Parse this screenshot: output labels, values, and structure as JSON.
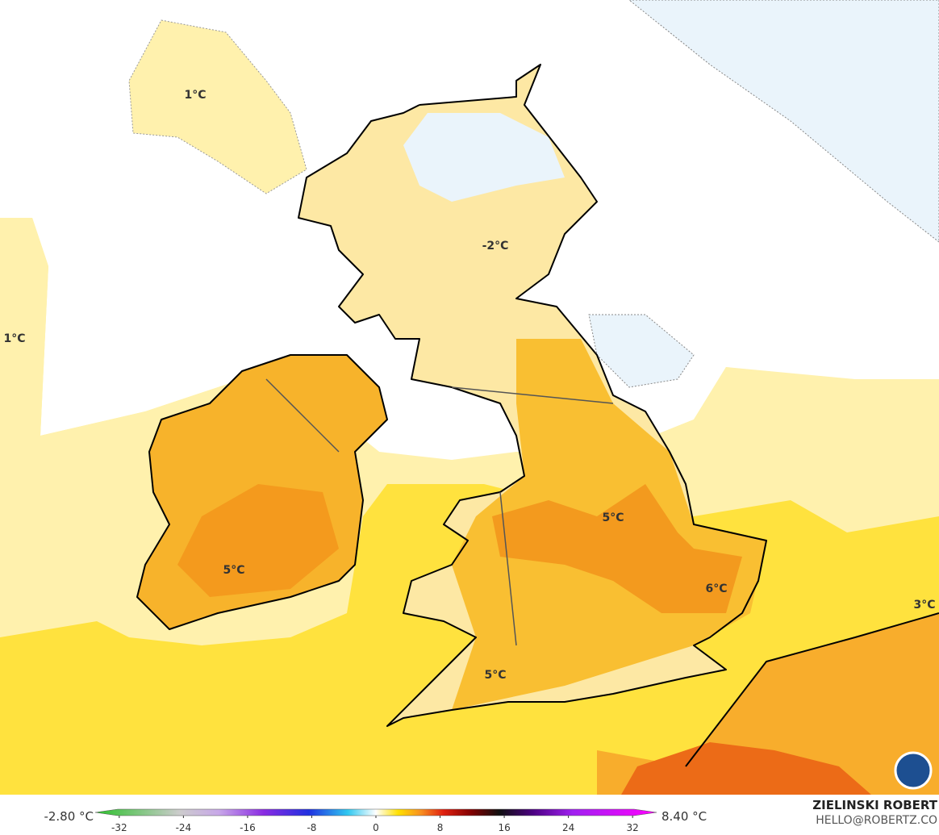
{
  "map": {
    "labels": [
      "1°C",
      "1°C",
      "-2°C",
      "5°C",
      "5°C",
      "6°C",
      "3°C",
      "5°C"
    ]
  },
  "legend": {
    "min_label": "-2.80 °C",
    "max_label": "8.40 °C",
    "range": [
      -35,
      35
    ],
    "ticks": [
      -32,
      -24,
      -16,
      -8,
      0,
      8,
      16,
      24,
      32
    ]
  },
  "credit": {
    "name": "ZIELINSKI ROBERT",
    "email": "HELLO@ROBERTZ.CO"
  }
}
